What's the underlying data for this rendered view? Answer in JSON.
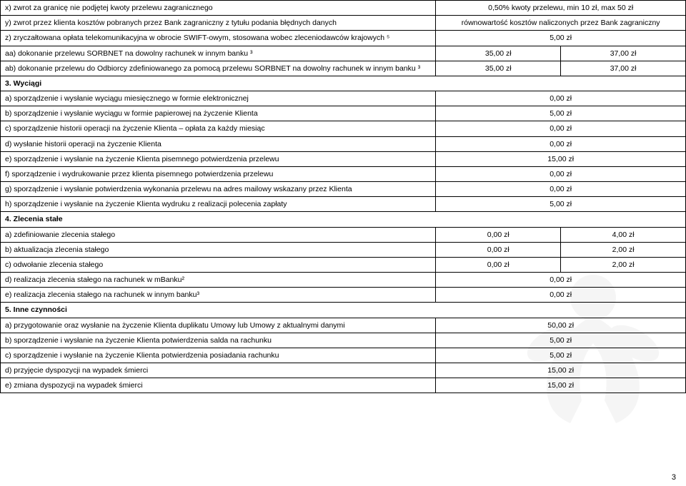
{
  "rows": [
    {
      "type": "two",
      "desc": "x) zwrot za granicę nie podjętej kwoty przelewu zagranicznego",
      "c1": "0,50% kwoty przelewu, min 10 zł, max 50 zł"
    },
    {
      "type": "two",
      "desc": "y) zwrot przez klienta kosztów pobranych przez Bank zagraniczny z tytułu podania błędnych danych",
      "c1": "równowartość kosztów naliczonych przez Bank zagraniczny"
    },
    {
      "type": "two",
      "desc": "z) zryczałtowana opłata telekomunikacyjna w obrocie SWIFT-owym, stosowana wobec zleceniodawców krajowych ⁵",
      "c1": "5,00 zł"
    },
    {
      "type": "three",
      "desc": "aa) dokonanie przelewu SORBNET na dowolny rachunek w innym banku ³",
      "c1": "35,00 zł",
      "c2": "37,00 zł"
    },
    {
      "type": "three",
      "desc": "ab) dokonanie przelewu do Odbiorcy zdefiniowanego za pomocą przelewu SORBNET na dowolny rachunek w innym banku ³",
      "c1": "35,00 zł",
      "c2": "37,00 zł"
    },
    {
      "type": "head",
      "desc": "3. Wyciągi"
    },
    {
      "type": "two",
      "desc": "a) sporządzenie i wysłanie wyciągu miesięcznego w formie elektronicznej",
      "c1": "0,00 zł"
    },
    {
      "type": "two",
      "desc": "b) sporządzenie i wysłanie wyciągu w formie papierowej na życzenie Klienta",
      "c1": "5,00 zł"
    },
    {
      "type": "two",
      "desc": "c) sporządzenie historii operacji na życzenie Klienta – opłata za każdy miesiąc",
      "c1": "0,00 zł"
    },
    {
      "type": "two",
      "desc": "d) wysłanie historii operacji na życzenie Klienta",
      "c1": "0,00 zł"
    },
    {
      "type": "two",
      "desc": "e) sporządzenie i wysłanie na życzenie Klienta pisemnego potwierdzenia przelewu",
      "c1": "15,00 zł"
    },
    {
      "type": "two",
      "desc": "f) sporządzenie i wydrukowanie przez klienta pisemnego potwierdzenia przelewu",
      "c1": "0,00 zł"
    },
    {
      "type": "two",
      "desc": "g) sporządzenie i wysłanie potwierdzenia wykonania przelewu na adres mailowy wskazany przez Klienta",
      "c1": "0,00 zł"
    },
    {
      "type": "two",
      "desc": "h) sporządzenie i wysłanie na życzenie Klienta wydruku z realizacji polecenia zapłaty",
      "c1": "5,00 zł"
    },
    {
      "type": "head",
      "desc": "4. Zlecenia stałe"
    },
    {
      "type": "three",
      "desc": "a) zdefiniowanie zlecenia stałego",
      "c1": "0,00 zł",
      "c2": "4,00 zł"
    },
    {
      "type": "three",
      "desc": "b) aktualizacja zlecenia stałego",
      "c1": "0,00 zł",
      "c2": "2,00 zł"
    },
    {
      "type": "three",
      "desc": "c) odwołanie zlecenia stałego",
      "c1": "0,00 zł",
      "c2": "2,00 zł"
    },
    {
      "type": "two",
      "desc": "d) realizacja zlecenia stałego na rachunek w mBanku²",
      "c1": "0,00 zł"
    },
    {
      "type": "two",
      "desc": "e) realizacja zlecenia stałego na rachunek w innym banku³",
      "c1": "0,00 zł"
    },
    {
      "type": "head",
      "desc": "5. Inne czynności"
    },
    {
      "type": "two",
      "desc": "a) przygotowanie oraz wysłanie na życzenie Klienta duplikatu Umowy lub Umowy z aktualnymi danymi",
      "c1": "50,00 zł"
    },
    {
      "type": "two",
      "desc": "b) sporządzenie i wysłanie na życzenie Klienta potwierdzenia salda na rachunku",
      "c1": "5,00 zł"
    },
    {
      "type": "two",
      "desc": "c) sporządzenie i wysłanie na życzenie Klienta potwierdzenia posiadania rachunku",
      "c1": "5,00 zł"
    },
    {
      "type": "two",
      "desc": "d) przyjęcie dyspozycji na wypadek śmierci",
      "c1": "15,00 zł"
    },
    {
      "type": "two",
      "desc": "e) zmiana dyspozycji na wypadek śmierci",
      "c1": "15,00 zł"
    }
  ],
  "page_number": "3",
  "colors": {
    "background": "#ffffff",
    "text": "#000000",
    "border": "#000000",
    "watermark": "#999999"
  }
}
